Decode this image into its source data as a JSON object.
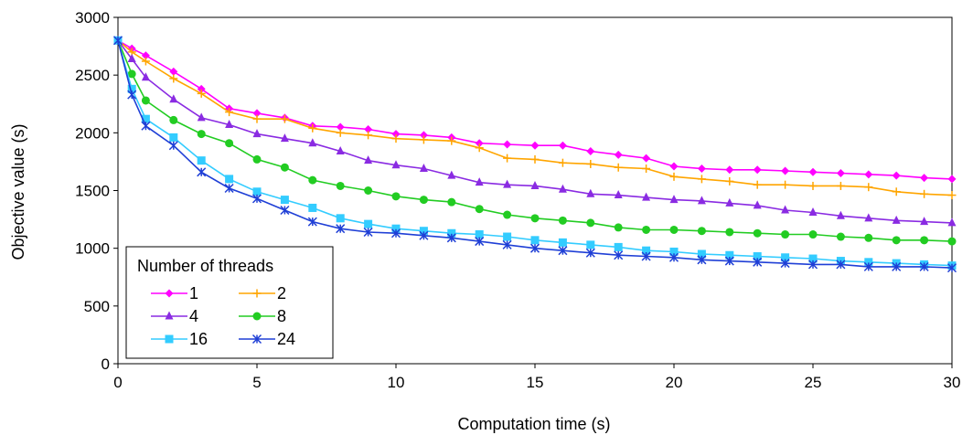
{
  "chart_data": {
    "type": "line",
    "title": "",
    "xlabel": "Computation time (s)",
    "ylabel": "Objective value (s)",
    "xlim": [
      0,
      30
    ],
    "ylim": [
      0,
      3000
    ],
    "xticks": [
      "0",
      "5",
      "10",
      "15",
      "20",
      "25",
      "30"
    ],
    "yticks": [
      "0",
      "500",
      "1000",
      "1500",
      "2000",
      "2500",
      "3000"
    ],
    "grid": false,
    "legend": {
      "title": "Number of threads",
      "placement": "bottom-left"
    },
    "x": [
      0,
      0.5,
      1,
      2,
      3,
      4,
      5,
      6,
      7,
      8,
      9,
      10,
      11,
      12,
      13,
      14,
      15,
      16,
      17,
      18,
      19,
      20,
      21,
      22,
      23,
      24,
      25,
      26,
      27,
      28,
      29,
      30
    ],
    "series": [
      {
        "name": "1",
        "color": "#ff00ff",
        "marker": "diamond",
        "values": [
          2800,
          2730,
          2670,
          2530,
          2380,
          2210,
          2170,
          2130,
          2060,
          2050,
          2030,
          1990,
          1980,
          1960,
          1910,
          1900,
          1890,
          1890,
          1840,
          1810,
          1780,
          1710,
          1690,
          1680,
          1680,
          1670,
          1660,
          1650,
          1640,
          1630,
          1610,
          1600
        ]
      },
      {
        "name": "2",
        "color": "#ffa500",
        "marker": "plus",
        "values": [
          2800,
          2700,
          2620,
          2470,
          2340,
          2180,
          2120,
          2120,
          2040,
          2000,
          1980,
          1950,
          1940,
          1930,
          1870,
          1780,
          1770,
          1740,
          1730,
          1700,
          1690,
          1620,
          1600,
          1580,
          1550,
          1550,
          1540,
          1540,
          1530,
          1490,
          1470,
          1460
        ]
      },
      {
        "name": "4",
        "color": "#8a2be2",
        "marker": "triangle",
        "values": [
          2800,
          2640,
          2480,
          2290,
          2130,
          2070,
          1990,
          1950,
          1910,
          1840,
          1760,
          1720,
          1690,
          1630,
          1570,
          1550,
          1540,
          1510,
          1470,
          1460,
          1440,
          1420,
          1410,
          1390,
          1370,
          1330,
          1310,
          1280,
          1260,
          1240,
          1230,
          1220
        ]
      },
      {
        "name": "8",
        "color": "#22cc22",
        "marker": "circle",
        "values": [
          2800,
          2510,
          2280,
          2110,
          1990,
          1910,
          1770,
          1700,
          1590,
          1540,
          1500,
          1450,
          1420,
          1400,
          1340,
          1290,
          1260,
          1240,
          1220,
          1180,
          1160,
          1160,
          1150,
          1140,
          1130,
          1120,
          1120,
          1100,
          1090,
          1070,
          1070,
          1060
        ]
      },
      {
        "name": "16",
        "color": "#33ccff",
        "marker": "square",
        "values": [
          2800,
          2380,
          2120,
          1960,
          1760,
          1600,
          1490,
          1420,
          1350,
          1260,
          1210,
          1170,
          1150,
          1130,
          1120,
          1100,
          1070,
          1050,
          1030,
          1010,
          980,
          970,
          950,
          940,
          930,
          920,
          910,
          890,
          880,
          870,
          860,
          850
        ]
      },
      {
        "name": "24",
        "color": "#1f3fd6",
        "marker": "star",
        "values": [
          2800,
          2330,
          2060,
          1890,
          1660,
          1520,
          1430,
          1330,
          1230,
          1170,
          1140,
          1130,
          1110,
          1090,
          1060,
          1030,
          1000,
          980,
          960,
          940,
          930,
          920,
          900,
          890,
          880,
          870,
          860,
          860,
          840,
          840,
          840,
          830
        ]
      }
    ]
  }
}
